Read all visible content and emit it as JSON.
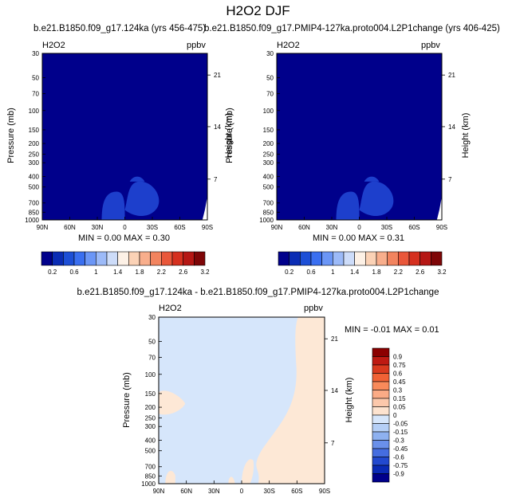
{
  "title": "H2O2 DJF",
  "colors": {
    "panel_fill": "#00008b",
    "panel_blob": "#1d3fcc",
    "diff_fill": "#d6e6fb",
    "diff_pos": "#fde8d6"
  },
  "panels": [
    {
      "subtitle": "b.e21.B1850.f09_g17.124ka (yrs 456-475)",
      "field_label": "H2O2",
      "units": "ppbv",
      "ylabel": "Pressure (mb)",
      "ylabel_right": "Height (km)",
      "minmax": "MIN =   0.00   MAX =   0.30"
    },
    {
      "subtitle": "b.e21.B1850.f09_g17.PMIP4-127ka.proto004.L2P1change (yrs 406-425)",
      "field_label": "H2O2",
      "units": "ppbv",
      "ylabel": "Pressure (mb)",
      "ylabel_right": "Height (km)",
      "minmax": "MIN =   0.00   MAX =   0.31"
    },
    {
      "subtitle": "b.e21.B1850.f09_g17.124ka - b.e21.B1850.f09_g17.PMIP4-127ka.proto004.L2P1change",
      "field_label": "H2O2",
      "units": "ppbv",
      "ylabel": "Pressure (mb)",
      "ylabel_right": "Height (km)",
      "minmax": "MIN =  -0.01   MAX =   0.01"
    }
  ],
  "y_ticks": [
    "30",
    "50",
    "70",
    "100",
    "150",
    "200",
    "250",
    "300",
    "400",
    "500",
    "700",
    "850",
    "1000"
  ],
  "y_right_ticks": [
    "21",
    "14",
    "7"
  ],
  "x_ticks": [
    "90N",
    "60N",
    "30N",
    "0",
    "30S",
    "60S",
    "90S"
  ],
  "top_colorbar": {
    "colors": [
      "#00008b",
      "#0a2cb4",
      "#1d4fd6",
      "#3a6ff0",
      "#6b96f6",
      "#9cbaf8",
      "#cddcf9",
      "#fdf1e6",
      "#fbd2b6",
      "#f8ae8c",
      "#f2845f",
      "#e9573a",
      "#d5301f",
      "#b51714",
      "#7e0607"
    ],
    "labels": [
      "0.2",
      "0.6",
      "1",
      "1.4",
      "1.8",
      "2.2",
      "2.6",
      "3.2"
    ]
  },
  "diff_colorbar": {
    "colors": [
      "#8b0000",
      "#be1a12",
      "#d93a1e",
      "#f06235",
      "#f98a5a",
      "#fbab86",
      "#fcc8ab",
      "#fde3cf",
      "#d6e6fb",
      "#b5cff6",
      "#8eb1f0",
      "#6a90ea",
      "#456de0",
      "#2249cf",
      "#0a2ab5",
      "#00008b"
    ],
    "labels": [
      "0.9",
      "0.75",
      "0.6",
      "0.45",
      "0.3",
      "0.15",
      "0.05",
      "0",
      "-0.05",
      "-0.15",
      "-0.3",
      "-0.45",
      "-0.6",
      "-0.75",
      "-0.9"
    ]
  },
  "chart_data": [
    {
      "type": "heatmap",
      "title": "b.e21.B1850.f09_g17.124ka (yrs 456-475)",
      "variable": "H2O2",
      "units": "ppbv",
      "x": [
        "90N",
        "60N",
        "30N",
        "0",
        "30S",
        "60S",
        "90S"
      ],
      "y_pressure_mb": [
        30,
        50,
        70,
        100,
        150,
        200,
        250,
        300,
        400,
        500,
        700,
        850,
        1000
      ],
      "y_height_km": [
        21,
        14,
        7
      ],
      "min": 0.0,
      "max": 0.3,
      "levels": [
        0.2,
        0.6,
        1,
        1.4,
        1.8,
        2.2,
        2.6,
        3.2
      ]
    },
    {
      "type": "heatmap",
      "title": "b.e21.B1850.f09_g17.PMIP4-127ka.proto004.L2P1change (yrs 406-425)",
      "variable": "H2O2",
      "units": "ppbv",
      "x": [
        "90N",
        "60N",
        "30N",
        "0",
        "30S",
        "60S",
        "90S"
      ],
      "y_pressure_mb": [
        30,
        50,
        70,
        100,
        150,
        200,
        250,
        300,
        400,
        500,
        700,
        850,
        1000
      ],
      "y_height_km": [
        21,
        14,
        7
      ],
      "min": 0.0,
      "max": 0.31,
      "levels": [
        0.2,
        0.6,
        1,
        1.4,
        1.8,
        2.2,
        2.6,
        3.2
      ]
    },
    {
      "type": "heatmap",
      "title": "b.e21.B1850.f09_g17.124ka - b.e21.B1850.f09_g17.PMIP4-127ka.proto004.L2P1change",
      "variable": "H2O2",
      "units": "ppbv",
      "x": [
        "90N",
        "60N",
        "30N",
        "0",
        "30S",
        "60S",
        "90S"
      ],
      "y_pressure_mb": [
        30,
        50,
        70,
        100,
        150,
        200,
        250,
        300,
        400,
        500,
        700,
        850,
        1000
      ],
      "y_height_km": [
        21,
        14,
        7
      ],
      "min": -0.01,
      "max": 0.01,
      "levels": [
        -0.9,
        -0.75,
        -0.6,
        -0.45,
        -0.3,
        -0.15,
        -0.05,
        0,
        0.05,
        0.15,
        0.3,
        0.45,
        0.6,
        0.75,
        0.9
      ]
    }
  ]
}
